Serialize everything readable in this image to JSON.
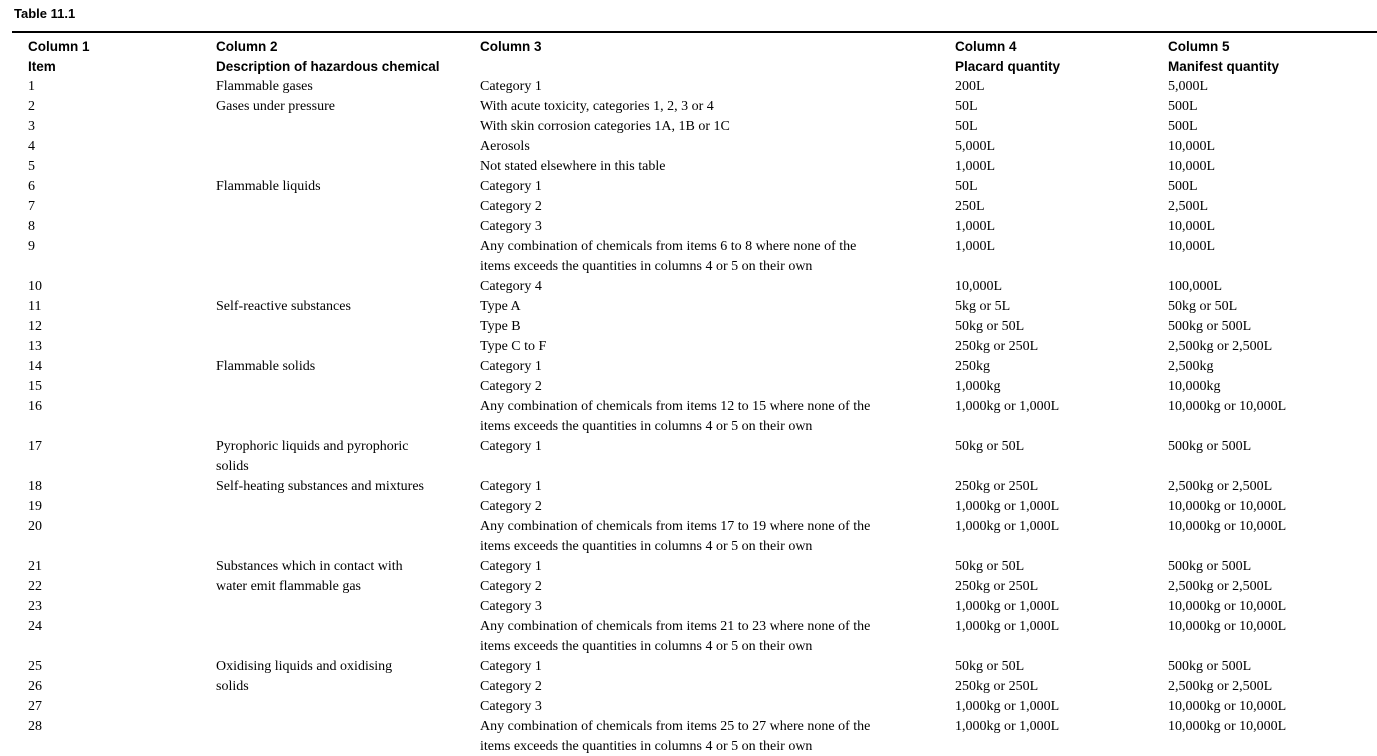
{
  "title": "Table 11.1",
  "colors": {
    "text": "#000000",
    "rule": "#000000",
    "background": "#ffffff"
  },
  "table": {
    "headers": [
      "Column 1\nItem",
      "Column 2\nDescription of hazardous chemical",
      "Column 3",
      "Column 4\nPlacard quantity",
      "Column 5\nManifest quantity"
    ],
    "groups": [
      {
        "description": "Flammable gases",
        "rows": [
          {
            "item": "1",
            "criteria": "Category 1",
            "placard": "200L",
            "manifest": "5,000L"
          }
        ]
      },
      {
        "description": "Gases under pressure",
        "rows": [
          {
            "item": "2",
            "criteria": "With acute toxicity, categories 1, 2, 3 or 4",
            "placard": "50L",
            "manifest": "500L"
          },
          {
            "item": "3",
            "criteria": "With skin corrosion categories 1A, 1B or 1C",
            "placard": "50L",
            "manifest": "500L"
          },
          {
            "item": "4",
            "criteria": "Aerosols",
            "placard": "5,000L",
            "manifest": "10,000L"
          },
          {
            "item": "5",
            "criteria": "Not stated elsewhere in this table",
            "placard": "1,000L",
            "manifest": "10,000L"
          }
        ]
      },
      {
        "description": "Flammable liquids",
        "rows": [
          {
            "item": "6",
            "criteria": "Category 1",
            "placard": "50L",
            "manifest": "500L"
          },
          {
            "item": "7",
            "criteria": "Category 2",
            "placard": "250L",
            "manifest": "2,500L"
          },
          {
            "item": "8",
            "criteria": "Category 3",
            "placard": "1,000L",
            "manifest": "10,000L"
          },
          {
            "item": "9",
            "criteria": "Any combination of chemicals from items 6 to 8 where none of the\nitems exceeds the quantities in columns 4 or 5 on their own",
            "placard": "1,000L",
            "manifest": "10,000L"
          },
          {
            "item": "10",
            "criteria": "Category 4",
            "placard": "10,000L",
            "manifest": "100,000L"
          }
        ]
      },
      {
        "description": "Self-reactive substances",
        "rows": [
          {
            "item": "11",
            "criteria": "Type A",
            "placard": "5kg or 5L",
            "manifest": "50kg or 50L"
          },
          {
            "item": "12",
            "criteria": "Type B",
            "placard": "50kg or 50L",
            "manifest": "500kg or 500L"
          },
          {
            "item": "13",
            "criteria": "Type C to F",
            "placard": "250kg or 250L",
            "manifest": "2,500kg or 2,500L"
          }
        ]
      },
      {
        "description": "Flammable solids",
        "rows": [
          {
            "item": "14",
            "criteria": "Category 1",
            "placard": "250kg",
            "manifest": "2,500kg"
          },
          {
            "item": "15",
            "criteria": "Category 2",
            "placard": "1,000kg",
            "manifest": "10,000kg"
          },
          {
            "item": "16",
            "criteria": "Any combination of chemicals from items 12 to 15 where none of the\nitems exceeds the quantities in columns 4 or 5 on their own",
            "placard": "1,000kg or 1,000L",
            "manifest": "10,000kg or 10,000L"
          }
        ]
      },
      {
        "description": "Pyrophoric liquids and pyrophoric\nsolids",
        "rows": [
          {
            "item": "17",
            "criteria": "Category 1",
            "placard": "50kg or 50L",
            "manifest": "500kg or 500L"
          }
        ]
      },
      {
        "description": "Self-heating substances and mixtures",
        "rows": [
          {
            "item": "18",
            "criteria": "Category 1",
            "placard": "250kg or 250L",
            "manifest": "2,500kg or 2,500L"
          },
          {
            "item": "19",
            "criteria": "Category 2",
            "placard": "1,000kg or 1,000L",
            "manifest": "10,000kg or 10,000L"
          },
          {
            "item": "20",
            "criteria": "Any combination of chemicals from items 17 to 19 where none of the\nitems exceeds the quantities in columns 4 or 5 on their own",
            "placard": "1,000kg or 1,000L",
            "manifest": "10,000kg or 10,000L"
          }
        ]
      },
      {
        "description": "Substances which in contact with\nwater emit flammable gas",
        "rows": [
          {
            "item": "21",
            "criteria": "Category 1",
            "placard": "50kg or 50L",
            "manifest": "500kg or 500L"
          },
          {
            "item": "22",
            "criteria": "Category 2",
            "placard": "250kg or 250L",
            "manifest": "2,500kg or 2,500L"
          },
          {
            "item": "23",
            "criteria": "Category 3",
            "placard": "1,000kg or 1,000L",
            "manifest": "10,000kg or 10,000L"
          },
          {
            "item": "24",
            "criteria": "Any combination of chemicals from items 21 to 23 where none of the\nitems exceeds the quantities in columns 4 or 5 on their own",
            "placard": "1,000kg or 1,000L",
            "manifest": "10,000kg or 10,000L"
          }
        ]
      },
      {
        "description": "Oxidising liquids and oxidising\nsolids",
        "rows": [
          {
            "item": "25",
            "criteria": "Category 1",
            "placard": "50kg or 50L",
            "manifest": "500kg or 500L"
          },
          {
            "item": "26",
            "criteria": "Category 2",
            "placard": "250kg or 250L",
            "manifest": "2,500kg or 2,500L"
          },
          {
            "item": "27",
            "criteria": "Category 3",
            "placard": "1,000kg or 1,000L",
            "manifest": "10,000kg or 10,000L"
          },
          {
            "item": "28",
            "criteria": "Any combination of chemicals from items 25 to 27 where none of the\nitems exceeds the quantities in columns 4 or 5 on their own",
            "placard": "1,000kg or 1,000L",
            "manifest": "10,000kg or 10,000L"
          }
        ]
      }
    ]
  }
}
